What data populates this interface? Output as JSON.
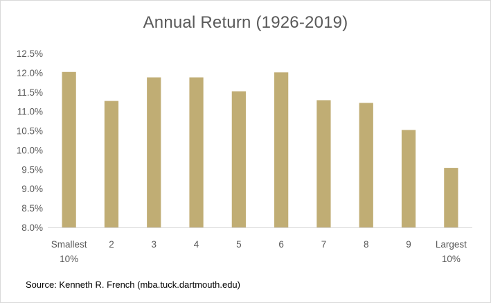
{
  "chart_data": {
    "type": "bar",
    "title": "Annual Return (1926-2019)",
    "categories": [
      "Smallest 10%",
      "2",
      "3",
      "4",
      "5",
      "6",
      "7",
      "8",
      "9",
      "Largest 10%"
    ],
    "category_label_lines": [
      [
        "Smallest",
        "10%"
      ],
      [
        "2"
      ],
      [
        "3"
      ],
      [
        "4"
      ],
      [
        "5"
      ],
      [
        "6"
      ],
      [
        "7"
      ],
      [
        "8"
      ],
      [
        "9"
      ],
      [
        "Largest",
        "10%"
      ]
    ],
    "values": [
      12.02,
      11.27,
      11.88,
      11.88,
      11.52,
      12.01,
      11.29,
      11.22,
      10.52,
      9.54
    ],
    "ylim": [
      8.0,
      12.5
    ],
    "yticks": [
      8.0,
      8.5,
      9.0,
      9.5,
      10.0,
      10.5,
      11.0,
      11.5,
      12.0,
      12.5
    ],
    "ytick_labels": [
      "8.0%",
      "8.5%",
      "9.0%",
      "9.5%",
      "10.0%",
      "10.5%",
      "11.0%",
      "11.5%",
      "12.0%",
      "12.5%"
    ],
    "xlabel": "",
    "ylabel": "",
    "grid": false,
    "legend": "none",
    "bar_color": "#c0ad74",
    "axis_color": "#d9d9d9",
    "text_color": "#595959"
  },
  "source": "Source: Kenneth R. French (mba.tuck.dartmouth.edu)"
}
